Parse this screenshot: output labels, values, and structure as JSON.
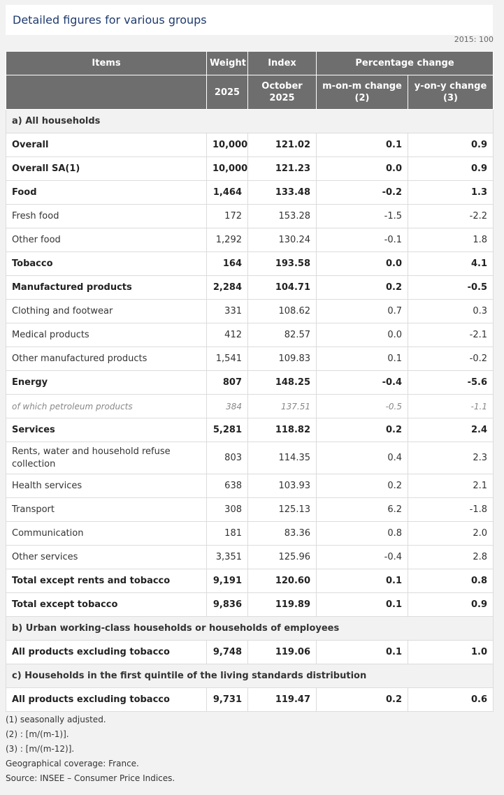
{
  "title": "Detailed figures for various groups",
  "base_note": "2015: 100",
  "headers": {
    "items": "Items",
    "weight": "Weight",
    "index": "Index",
    "pct_change": "Percentage change",
    "weight_year": "2025",
    "index_period": "October 2025",
    "mom": "m-on-m change (2)",
    "yoy": "y-on-y change (3)"
  },
  "sections": [
    {
      "title": "a) All households",
      "rows": [
        {
          "label": "Overall",
          "weight": "10,000",
          "index": "121.02",
          "mom": "0.1",
          "yoy": "0.9",
          "style": "bold"
        },
        {
          "label": "Overall SA(1)",
          "weight": "10,000",
          "index": "121.23",
          "mom": "0.0",
          "yoy": "0.9",
          "style": "bold"
        },
        {
          "label": "Food",
          "weight": "1,464",
          "index": "133.48",
          "mom": "-0.2",
          "yoy": "1.3",
          "style": "bold"
        },
        {
          "label": "Fresh food",
          "weight": "172",
          "index": "153.28",
          "mom": "-1.5",
          "yoy": "-2.2",
          "style": "normal"
        },
        {
          "label": "Other food",
          "weight": "1,292",
          "index": "130.24",
          "mom": "-0.1",
          "yoy": "1.8",
          "style": "normal"
        },
        {
          "label": "Tobacco",
          "weight": "164",
          "index": "193.58",
          "mom": "0.0",
          "yoy": "4.1",
          "style": "bold"
        },
        {
          "label": "Manufactured products",
          "weight": "2,284",
          "index": "104.71",
          "mom": "0.2",
          "yoy": "-0.5",
          "style": "bold"
        },
        {
          "label": "Clothing and footwear",
          "weight": "331",
          "index": "108.62",
          "mom": "0.7",
          "yoy": "0.3",
          "style": "normal"
        },
        {
          "label": "Medical products",
          "weight": "412",
          "index": "82.57",
          "mom": "0.0",
          "yoy": "-2.1",
          "style": "normal"
        },
        {
          "label": "Other manufactured products",
          "weight": "1,541",
          "index": "109.83",
          "mom": "0.1",
          "yoy": "-0.2",
          "style": "normal"
        },
        {
          "label": "Energy",
          "weight": "807",
          "index": "148.25",
          "mom": "-0.4",
          "yoy": "-5.6",
          "style": "bold"
        },
        {
          "label": "of which petroleum products",
          "weight": "384",
          "index": "137.51",
          "mom": "-0.5",
          "yoy": "-1.1",
          "style": "italic"
        },
        {
          "label": "Services",
          "weight": "5,281",
          "index": "118.82",
          "mom": "0.2",
          "yoy": "2.4",
          "style": "bold"
        },
        {
          "label": "Rents, water and household refuse collection",
          "weight": "803",
          "index": "114.35",
          "mom": "0.4",
          "yoy": "2.3",
          "style": "normal",
          "tall": true
        },
        {
          "label": "Health services",
          "weight": "638",
          "index": "103.93",
          "mom": "0.2",
          "yoy": "2.1",
          "style": "normal"
        },
        {
          "label": "Transport",
          "weight": "308",
          "index": "125.13",
          "mom": "6.2",
          "yoy": "-1.8",
          "style": "normal"
        },
        {
          "label": "Communication",
          "weight": "181",
          "index": "83.36",
          "mom": "0.8",
          "yoy": "2.0",
          "style": "normal"
        },
        {
          "label": "Other services",
          "weight": "3,351",
          "index": "125.96",
          "mom": "-0.4",
          "yoy": "2.8",
          "style": "normal"
        },
        {
          "label": "Total except rents and tobacco",
          "weight": "9,191",
          "index": "120.60",
          "mom": "0.1",
          "yoy": "0.8",
          "style": "bold"
        },
        {
          "label": "Total except tobacco",
          "weight": "9,836",
          "index": "119.89",
          "mom": "0.1",
          "yoy": "0.9",
          "style": "bold"
        }
      ]
    },
    {
      "title": "b) Urban working-class households or households of employees",
      "rows": [
        {
          "label": "All products excluding tobacco",
          "weight": "9,748",
          "index": "119.06",
          "mom": "0.1",
          "yoy": "1.0",
          "style": "bold"
        }
      ]
    },
    {
      "title": "c) Households in the first quintile of the living standards distribution",
      "rows": [
        {
          "label": "All products excluding tobacco",
          "weight": "9,731",
          "index": "119.47",
          "mom": "0.2",
          "yoy": "0.6",
          "style": "bold"
        }
      ]
    }
  ],
  "notes": [
    "(1) seasonally adjusted.",
    "(2) : [m/(m-1)].",
    "(3) : [m/(m-12)].",
    "Geographical coverage: France.",
    "Source: INSEE – Consumer Price Indices."
  ]
}
